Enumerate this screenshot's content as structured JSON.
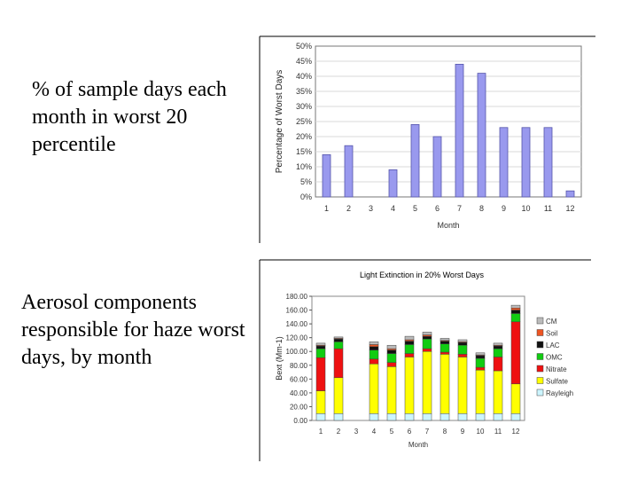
{
  "captions": {
    "top": "% of sample days each month in worst 20 percentile",
    "bottom": "Aerosol components responsible for haze worst days, by month"
  },
  "chart_data": [
    {
      "type": "bar",
      "title": "",
      "xlabel": "Month",
      "ylabel": "Percentage of Worst Days",
      "categories": [
        "1",
        "2",
        "3",
        "4",
        "5",
        "6",
        "7",
        "8",
        "9",
        "10",
        "11",
        "12"
      ],
      "values": [
        14,
        17,
        0,
        9,
        24,
        20,
        44,
        41,
        23,
        23,
        23,
        2
      ],
      "ylim": [
        0,
        50
      ],
      "yticks": [
        "0%",
        "5%",
        "10%",
        "15%",
        "20%",
        "25%",
        "30%",
        "35%",
        "40%",
        "45%",
        "50%"
      ],
      "bar_color": "#9999ee",
      "grid": true
    },
    {
      "type": "stacked-bar",
      "title": "Light Extinction in 20% Worst Days",
      "xlabel": "Month",
      "ylabel": "Bext (Mm-1)",
      "categories": [
        "1",
        "2",
        "3",
        "4",
        "5",
        "6",
        "7",
        "8",
        "9",
        "10",
        "11",
        "12"
      ],
      "ylim": [
        0,
        180
      ],
      "yticks": [
        "0.00",
        "20.00",
        "40.00",
        "60.00",
        "80.00",
        "100.00",
        "120.00",
        "140.00",
        "160.00",
        "180.00"
      ],
      "legend_position": "right",
      "series": [
        {
          "name": "Rayleigh",
          "color": "#ccf5ff",
          "values": [
            10,
            10,
            0,
            10,
            10,
            10,
            10,
            10,
            10,
            10,
            10,
            10
          ]
        },
        {
          "name": "Sulfate",
          "color": "#ffff00",
          "values": [
            33,
            52,
            0,
            72,
            68,
            82,
            90,
            86,
            82,
            63,
            62,
            43
          ]
        },
        {
          "name": "Nitrate",
          "color": "#ee1111",
          "values": [
            48,
            42,
            0,
            7,
            6,
            5,
            4,
            3,
            4,
            4,
            20,
            90
          ]
        },
        {
          "name": "OMC",
          "color": "#11cc11",
          "values": [
            13,
            10,
            0,
            13,
            13,
            13,
            14,
            12,
            13,
            13,
            12,
            12
          ]
        },
        {
          "name": "LAC",
          "color": "#111111",
          "values": [
            4,
            4,
            0,
            5,
            5,
            5,
            4,
            4,
            4,
            4,
            4,
            5
          ]
        },
        {
          "name": "Soil",
          "color": "#ee5522",
          "values": [
            1,
            1,
            0,
            3,
            2,
            2,
            2,
            1,
            1,
            1,
            1,
            3
          ]
        },
        {
          "name": "CM",
          "color": "#bbbbbb",
          "values": [
            3,
            2,
            0,
            4,
            5,
            5,
            4,
            3,
            3,
            3,
            3,
            4
          ]
        }
      ]
    }
  ]
}
